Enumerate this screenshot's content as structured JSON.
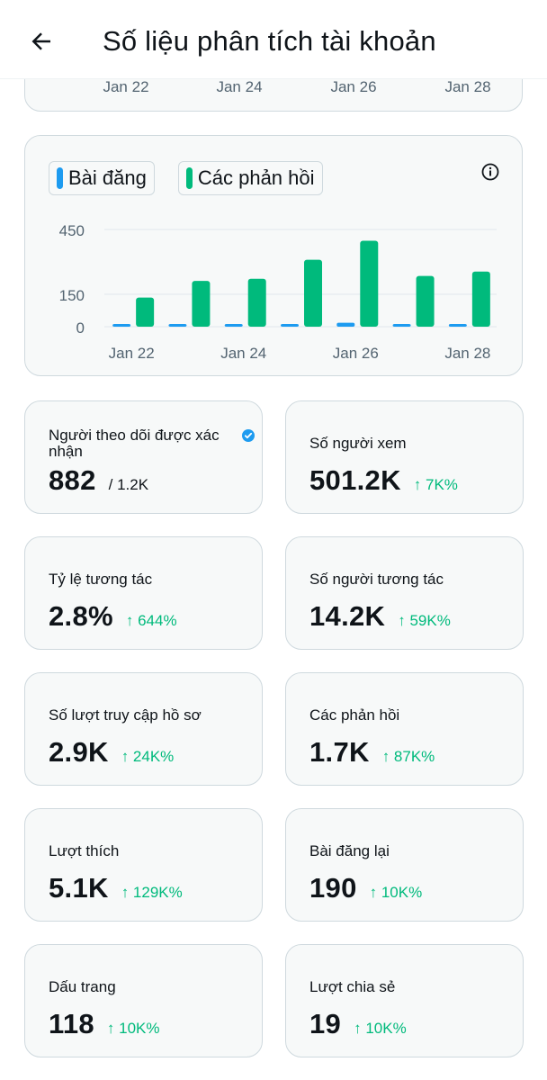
{
  "header": {
    "title": "Số liệu phân tích tài khoản"
  },
  "top_chart": {
    "ticks": [
      "Jan 22",
      "Jan 24",
      "Jan 26",
      "Jan 28"
    ]
  },
  "chart_data": {
    "type": "bar",
    "title": "",
    "categories": [
      "Jan 22",
      "Jan 23",
      "Jan 24",
      "Jan 25",
      "Jan 26",
      "Jan 27",
      "Jan 28"
    ],
    "x_tick_labels": [
      "Jan 22",
      "Jan 24",
      "Jan 26",
      "Jan 28"
    ],
    "y_tick_labels": [
      "450",
      "150",
      "0"
    ],
    "y_ticks": [
      450,
      150,
      0
    ],
    "ylim": [
      0,
      450
    ],
    "series": [
      {
        "name": "Bài đăng",
        "color": "#1d9bf0",
        "values": [
          8,
          10,
          10,
          12,
          18,
          12,
          10
        ]
      },
      {
        "name": "Các phản hồi",
        "color": "#00ba7c",
        "values": [
          135,
          212,
          222,
          310,
          398,
          235,
          255
        ]
      }
    ],
    "xlabel": "",
    "ylabel": "",
    "grid": true
  },
  "colors": {
    "accent_blue": "#1d9bf0",
    "accent_green": "#00ba7c",
    "text_primary": "#0f1419",
    "text_secondary": "#536471"
  },
  "stats": [
    {
      "label": "Người theo dõi được xác nhận",
      "value": "882",
      "secondary": "/ 1.2K",
      "change": "",
      "verified": true
    },
    {
      "label": "Số người xem",
      "value": "501.2K",
      "secondary": "",
      "change": "↑ 7K%"
    },
    {
      "label": "Tỷ lệ tương tác",
      "value": "2.8%",
      "secondary": "",
      "change": "↑ 644%"
    },
    {
      "label": "Số người tương tác",
      "value": "14.2K",
      "secondary": "",
      "change": "↑ 59K%"
    },
    {
      "label": "Số lượt truy cập hồ sơ",
      "value": "2.9K",
      "secondary": "",
      "change": "↑ 24K%"
    },
    {
      "label": "Các phản hồi",
      "value": "1.7K",
      "secondary": "",
      "change": "↑ 87K%"
    },
    {
      "label": "Lượt thích",
      "value": "5.1K",
      "secondary": "",
      "change": "↑ 129K%"
    },
    {
      "label": "Bài đăng lại",
      "value": "190",
      "secondary": "",
      "change": "↑ 10K%"
    },
    {
      "label": "Dấu trang",
      "value": "118",
      "secondary": "",
      "change": "↑ 10K%"
    },
    {
      "label": "Lượt chia sẻ",
      "value": "19",
      "secondary": "",
      "change": "↑ 10K%"
    }
  ]
}
